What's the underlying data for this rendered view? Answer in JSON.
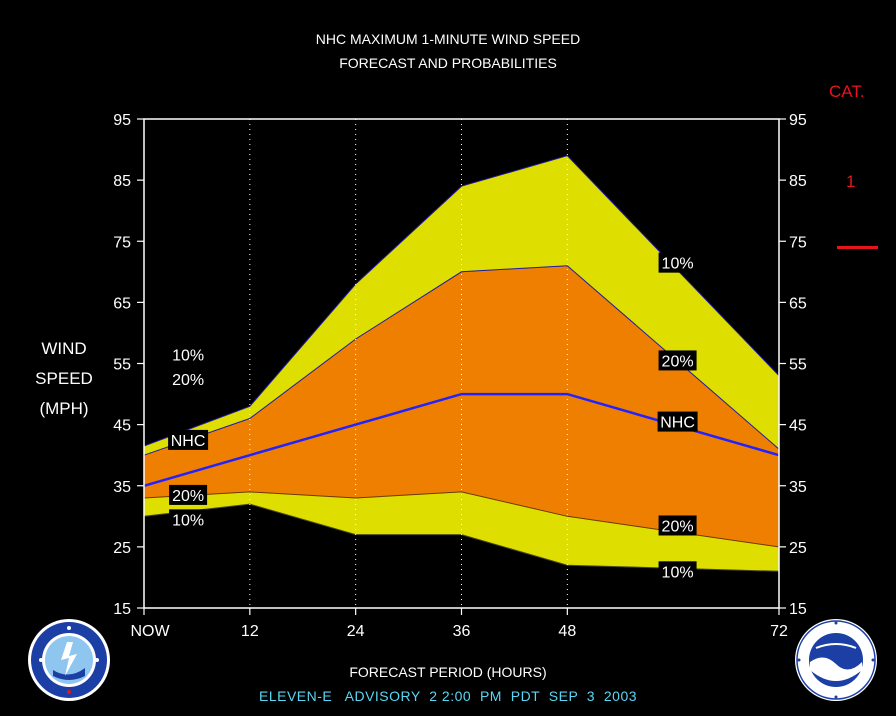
{
  "title_line1": "NHC MAXIMUM 1-MINUTE WIND SPEED",
  "title_line2": "FORECAST AND PROBABILITIES",
  "cat": {
    "label": "CAT.",
    "value": "1",
    "color": "#e8141c"
  },
  "ylabel_lines": [
    "WIND",
    "SPEED",
    "(MPH)"
  ],
  "xlabel": "FORECAST PERIOD (HOURS)",
  "advisory": "ELEVEN-E   ADVISORY  2 2:00  PM  PDT  SEP  3  2003",
  "logos": {
    "left": "nws-logo",
    "right": "noaa-logo"
  },
  "colors": {
    "outer_band": "#dede00",
    "inner_band": "#ee7f00",
    "nhc_line": "#2222ff",
    "band_edge": "#1a1aa8",
    "advisory_text": "#5ad6f2"
  },
  "chart_data": {
    "type": "area",
    "x_tick_labels": [
      "NOW",
      "12",
      "24",
      "36",
      "48",
      "72"
    ],
    "x": [
      0,
      12,
      24,
      36,
      48,
      72
    ],
    "y_ticks": [
      15,
      25,
      35,
      45,
      55,
      65,
      75,
      85,
      95
    ],
    "ylim": [
      15,
      95
    ],
    "xlim": [
      0,
      72
    ],
    "vertical_grid": "dotted at 12, 24, 36, 48",
    "series": [
      {
        "name": "10%",
        "role": "upper",
        "x": [
          0,
          12,
          24,
          36,
          48,
          72
        ],
        "values": [
          41.5,
          48,
          68,
          84,
          89,
          53
        ]
      },
      {
        "name": "20%",
        "role": "upper",
        "x": [
          0,
          12,
          24,
          36,
          48,
          72
        ],
        "values": [
          40,
          46,
          59,
          70,
          71,
          41
        ]
      },
      {
        "name": "NHC",
        "role": "forecast",
        "x": [
          0,
          12,
          24,
          36,
          48,
          72
        ],
        "values": [
          35,
          40,
          45,
          50,
          50,
          40
        ]
      },
      {
        "name": "20%",
        "role": "lower",
        "x": [
          0,
          12,
          24,
          36,
          48,
          72
        ],
        "values": [
          33,
          34,
          33,
          34,
          30,
          25
        ]
      },
      {
        "name": "10%",
        "role": "lower",
        "x": [
          0,
          12,
          24,
          36,
          48,
          72
        ],
        "values": [
          30,
          32,
          27,
          27,
          22,
          21
        ]
      }
    ],
    "labels": [
      {
        "text": "10%",
        "x": 5,
        "y": 56.5
      },
      {
        "text": "20%",
        "x": 5,
        "y": 52.5
      },
      {
        "text": "NHC",
        "x": 5,
        "y": 42.5
      },
      {
        "text": "20%",
        "x": 5,
        "y": 33.5
      },
      {
        "text": "10%",
        "x": 5,
        "y": 29.5
      },
      {
        "text": "10%",
        "x": 60.5,
        "y": 71.5
      },
      {
        "text": "20%",
        "x": 60.5,
        "y": 55.5
      },
      {
        "text": "NHC",
        "x": 60.5,
        "y": 45.5
      },
      {
        "text": "20%",
        "x": 60.5,
        "y": 28.5
      },
      {
        "text": "10%",
        "x": 60.5,
        "y": 21
      }
    ]
  }
}
